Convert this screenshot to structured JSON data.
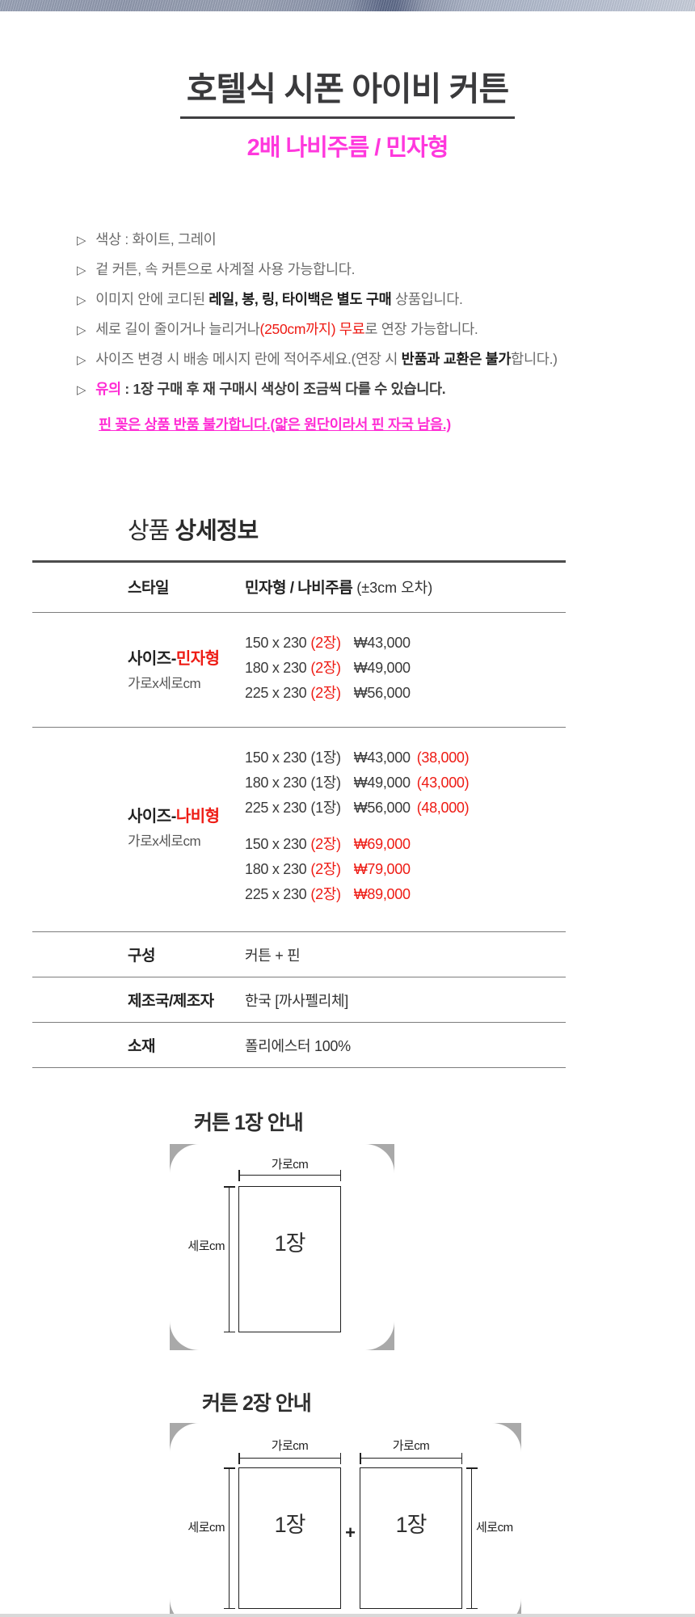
{
  "page": {
    "title": "호텔식 시폰 아이비 커튼",
    "subtitle": "2배 나비주름 / 민자형"
  },
  "colors": {
    "accent_red": "#ee1b14",
    "accent_pink": "#ff2bd4",
    "subtitle_pink": "#ff38dd",
    "title_dark": "#3a3a3c"
  },
  "features": {
    "marker": "▷",
    "items": [
      {
        "pre": "색상 : 화이트, 그레이",
        "em": "",
        "post": "",
        "em_style": "",
        "strong": false
      },
      {
        "pre": "겉 커튼, 속 커튼으로 사계절 사용 가능합니다.",
        "em": "",
        "post": "",
        "em_style": "",
        "strong": false
      },
      {
        "pre": "이미지 안에 코디된 ",
        "em": "레일, 봉, 링, 타이백은 별도 구매",
        "post": " 상품입니다.",
        "em_style": "bold",
        "strong": false
      },
      {
        "pre": "세로 길이 줄이거나 늘리거나",
        "em": "(250cm까지) 무료",
        "post": "로 연장 가능합니다.",
        "em_style": "red",
        "strong": false
      },
      {
        "pre": "사이즈 변경 시 배송 메시지 란에 적어주세요.(연장 시 ",
        "em": "반품과 교환은 불가",
        "post": "합니다.)",
        "em_style": "bold",
        "strong": false
      },
      {
        "pre": "",
        "em": "유의",
        "post": " : 1장 구매 후 재 구매시 색상이 조금씩 다를 수 있습니다.",
        "em_style": "pink",
        "strong": true
      }
    ],
    "warning": "핀 꽂은 상품 반품 불가합니다.(얇은 원단이라서 핀 자국 남음.)"
  },
  "section_heading": {
    "normal": "상품 ",
    "bold": "상세정보"
  },
  "table": {
    "style_row": {
      "label": "스타일",
      "value_bold": "민자형 / 나비주름",
      "value_tail": " (±3cm 오차)"
    },
    "minja_row": {
      "label_prefix": "사이즈-",
      "label_accent": "민자형",
      "sublabel": "가로x세로cm",
      "lines": [
        {
          "size": "150 x 230",
          "qty": "(2장)",
          "qty_red": true,
          "price": "₩43,000",
          "price_red": false,
          "extra": ""
        },
        {
          "size": "180 x 230",
          "qty": "(2장)",
          "qty_red": true,
          "price": "₩49,000",
          "price_red": false,
          "extra": ""
        },
        {
          "size": "225 x 230",
          "qty": "(2장)",
          "qty_red": true,
          "price": "₩56,000",
          "price_red": false,
          "extra": ""
        }
      ]
    },
    "nabi_row": {
      "label_prefix": "사이즈-",
      "label_accent": "나비형",
      "sublabel": "가로x세로cm",
      "groups": [
        {
          "lines": [
            {
              "size": "150 x 230",
              "qty": "(1장)",
              "qty_red": false,
              "price": "₩43,000",
              "price_red": false,
              "extra": "(38,000)"
            },
            {
              "size": "180 x 230",
              "qty": "(1장)",
              "qty_red": false,
              "price": "₩49,000",
              "price_red": false,
              "extra": "(43,000)"
            },
            {
              "size": "225 x 230",
              "qty": "(1장)",
              "qty_red": false,
              "price": "₩56,000",
              "price_red": false,
              "extra": "(48,000)"
            }
          ]
        },
        {
          "lines": [
            {
              "size": "150 x 230",
              "qty": "(2장)",
              "qty_red": true,
              "price": "₩69,000",
              "price_red": true,
              "extra": ""
            },
            {
              "size": "180 x 230",
              "qty": "(2장)",
              "qty_red": true,
              "price": "₩79,000",
              "price_red": true,
              "extra": ""
            },
            {
              "size": "225 x 230",
              "qty": "(2장)",
              "qty_red": true,
              "price": "₩89,000",
              "price_red": true,
              "extra": ""
            }
          ]
        }
      ]
    },
    "plain_rows": [
      {
        "label": "구성",
        "value": "커튼 + 핀"
      },
      {
        "label": "제조국/제조자",
        "value": "한국 [까사펠리체]"
      },
      {
        "label": "소재",
        "value": "폴리에스터 100%"
      }
    ]
  },
  "diagrams": {
    "single": {
      "heading": "커튼 1장 안내",
      "width_label": "가로cm",
      "height_label": "세로cm",
      "panel_label": "1장"
    },
    "double": {
      "heading": "커튼 2장 안내",
      "width_label": "가로cm",
      "height_label": "세로cm",
      "panel_label": "1장",
      "plus": "+"
    }
  }
}
